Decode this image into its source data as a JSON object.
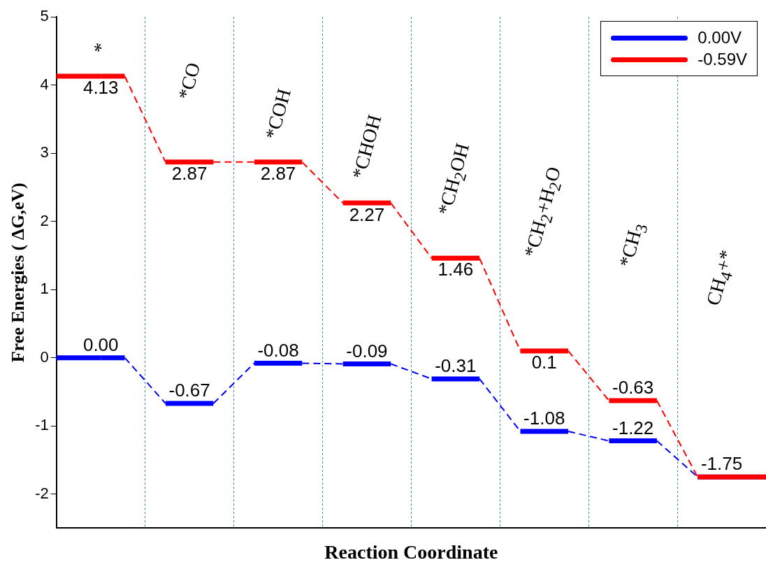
{
  "chart_data": {
    "type": "step",
    "xlabel": "Reaction Coordinate",
    "ylabel": "Free Energies ( ΔG,eV)",
    "categories": [
      "*",
      "*CO",
      "*COH",
      "*CHOH",
      "*CH$_{2}$OH",
      "*CH$_{2}$+H$_{2}$O",
      "*CH$_{3}$",
      "CH$_{4}$+*"
    ],
    "series": [
      {
        "name": "0.00V",
        "color": "#0000ff",
        "values": [
          0,
          -0.67,
          -0.08,
          -0.09,
          -0.31,
          -1.08,
          -1.22,
          -1.75
        ],
        "value_labels": [
          "0.00",
          "-0.67",
          "-0.08",
          "-0.09",
          "-0.31",
          "-1.08",
          "-1.22",
          null
        ]
      },
      {
        "name": "-0.59V",
        "color": "#ff0000",
        "values": [
          4.13,
          2.87,
          2.87,
          2.27,
          1.46,
          0.1,
          -0.63,
          -1.75
        ],
        "value_labels": [
          "4.13",
          "2.87",
          "2.87",
          "2.27",
          "1.46",
          "0.1",
          "-0.63",
          "-1.75"
        ]
      }
    ],
    "ylim": [
      -2.5,
      5
    ],
    "yticks": [
      -2,
      -1,
      0,
      1,
      2,
      3,
      4,
      5
    ],
    "grid": "x",
    "legend": "top right",
    "marker": "none",
    "line_style": "dashed"
  }
}
